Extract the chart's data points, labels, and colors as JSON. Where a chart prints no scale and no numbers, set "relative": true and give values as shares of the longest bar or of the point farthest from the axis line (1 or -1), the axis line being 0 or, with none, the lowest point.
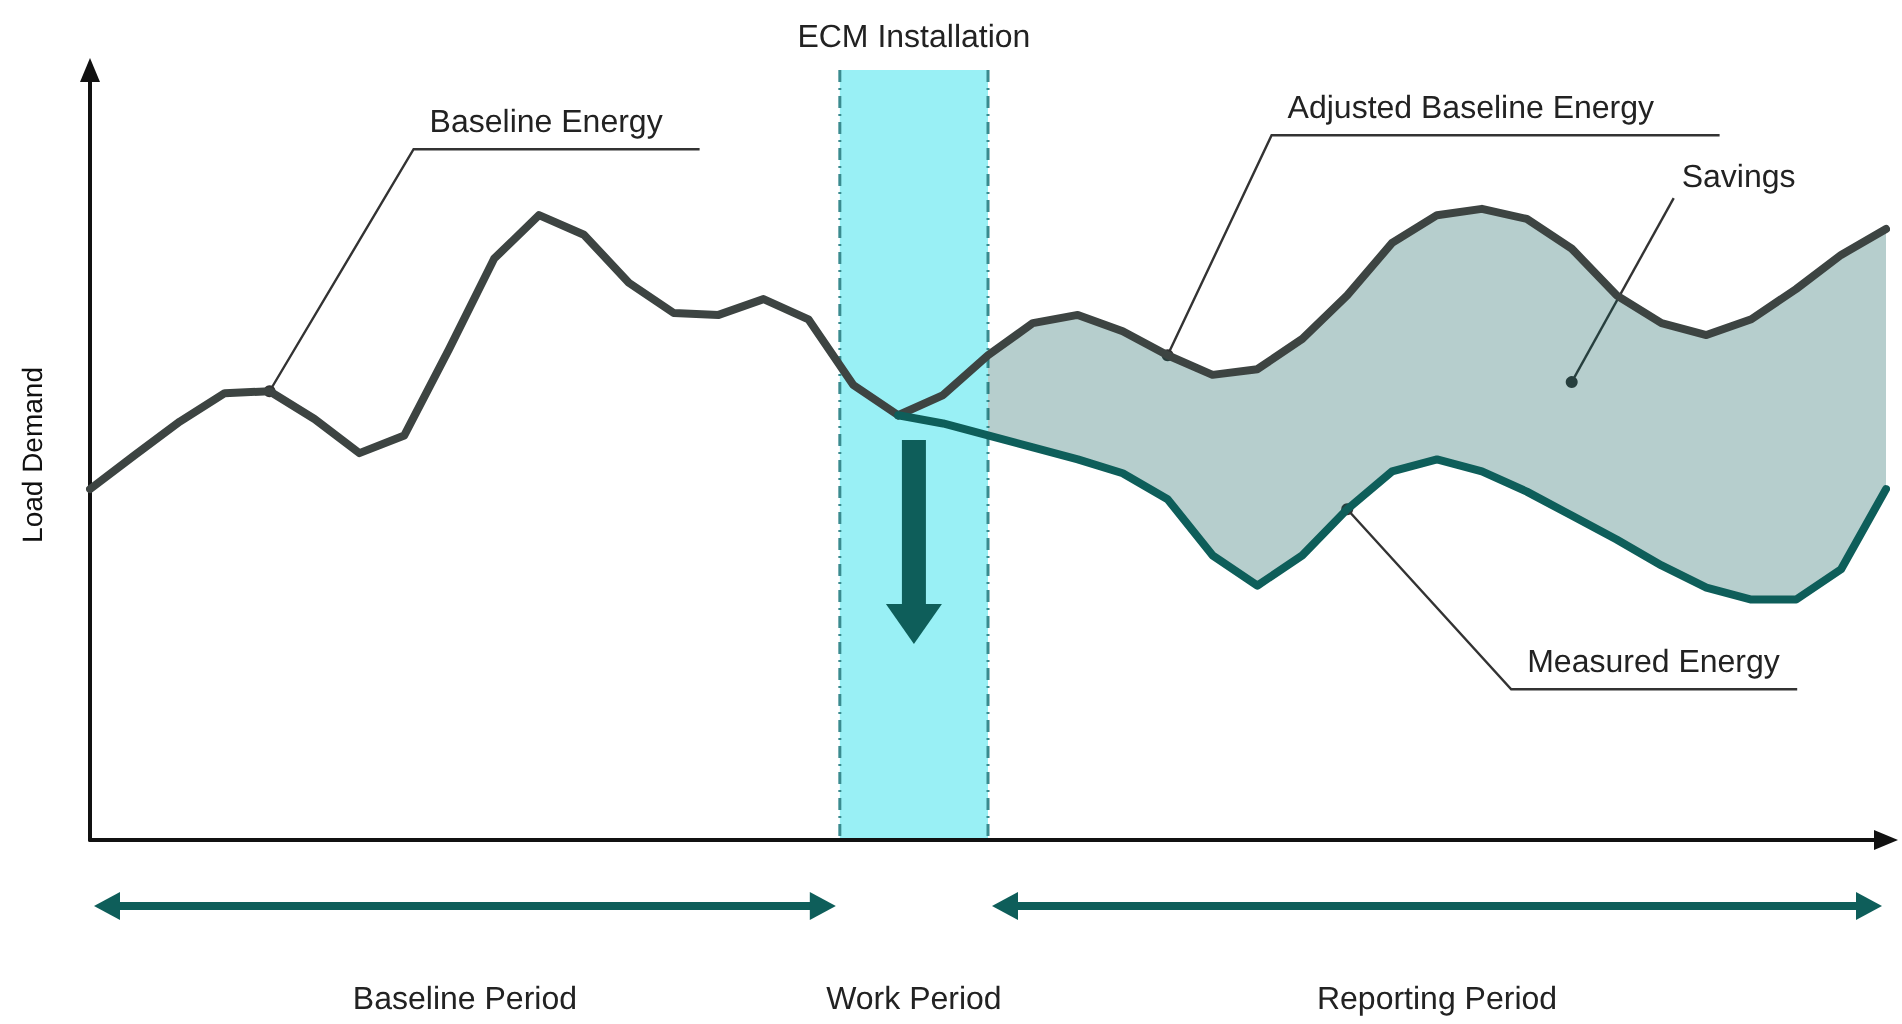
{
  "chart_data": {
    "type": "line",
    "relative": true,
    "ylabel": "Load Demand",
    "grid": false,
    "legend": false,
    "marker": "none",
    "line_style": "solid",
    "categories": [
      null,
      null,
      null,
      null,
      null,
      null,
      null,
      null,
      null,
      null,
      null,
      null,
      null,
      null,
      null,
      null,
      null,
      null,
      null,
      null,
      null,
      null,
      null,
      null,
      null,
      null,
      null,
      null,
      null,
      null,
      null,
      null,
      null,
      null,
      null,
      null,
      null,
      null,
      null,
      null,
      null
    ],
    "series": [
      {
        "name": "Baseline Energy",
        "color": "#3d4442",
        "values": [
          0.556,
          0.61,
          0.663,
          0.708,
          0.711,
          0.667,
          0.613,
          0.641,
          0.778,
          0.921,
          0.99,
          0.959,
          0.883,
          0.835,
          0.832,
          0.857,
          0.825,
          0.721,
          0.673,
          null,
          null,
          null,
          null,
          null,
          null,
          null,
          null,
          null,
          null,
          null,
          null,
          null,
          null,
          null,
          null,
          null,
          null,
          null,
          null,
          null,
          null
        ]
      },
      {
        "name": "Adjusted Baseline Energy",
        "color": "#3d4442",
        "values": [
          null,
          null,
          null,
          null,
          null,
          null,
          null,
          null,
          null,
          null,
          null,
          null,
          null,
          null,
          null,
          null,
          null,
          null,
          0.673,
          0.705,
          0.768,
          0.819,
          0.832,
          0.806,
          0.768,
          0.737,
          0.746,
          0.794,
          0.863,
          0.946,
          0.99,
          1.0,
          0.984,
          0.937,
          0.863,
          0.819,
          0.8,
          0.825,
          0.873,
          0.927,
          0.968
        ]
      },
      {
        "name": "Measured Energy",
        "color": "#0e5e5a",
        "values": [
          null,
          null,
          null,
          null,
          null,
          null,
          null,
          null,
          null,
          null,
          null,
          null,
          null,
          null,
          null,
          null,
          null,
          null,
          0.673,
          0.66,
          0.641,
          0.622,
          0.603,
          0.581,
          0.54,
          0.451,
          0.403,
          0.451,
          0.524,
          0.584,
          0.603,
          0.584,
          0.552,
          0.514,
          0.476,
          0.435,
          0.4,
          0.381,
          0.381,
          0.429,
          0.556
        ],
        "lower": [
          null,
          null,
          null,
          null,
          null,
          null,
          null,
          null,
          null,
          null,
          null,
          null,
          null,
          null,
          null,
          null,
          null,
          null,
          null,
          null,
          0.641,
          0.622,
          0.603,
          0.581,
          0.54,
          0.451,
          0.403,
          0.451,
          0.524,
          0.584,
          0.603,
          0.584,
          0.552,
          0.514,
          0.476,
          0.435,
          0.4,
          0.381,
          0.381,
          0.429,
          0.556
        ],
        "upper": [
          null,
          null,
          null,
          null,
          null,
          null,
          null,
          null,
          null,
          null,
          null,
          null,
          null,
          null,
          null,
          null,
          null,
          null,
          null,
          null,
          0.768,
          0.819,
          0.832,
          0.806,
          0.768,
          0.737,
          0.746,
          0.794,
          0.863,
          0.946,
          0.99,
          1.0,
          0.984,
          0.937,
          0.863,
          0.819,
          0.8,
          0.825,
          0.873,
          0.927,
          0.968
        ]
      }
    ],
    "annotations": [
      "ECM Installation",
      "Savings",
      "Baseline Period",
      "Work Period",
      "Reporting Period"
    ]
  }
}
